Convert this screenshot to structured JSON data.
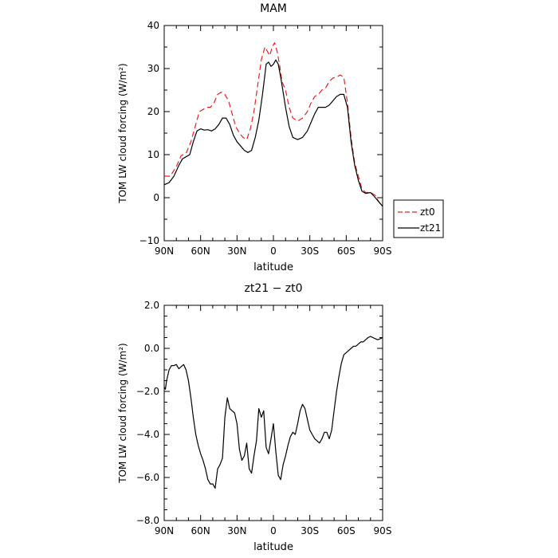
{
  "chart_data": [
    {
      "type": "line",
      "title": "MAM",
      "xlabel": "latitude",
      "ylabel": "TOM LW cloud forcing (W/m²)",
      "xlim": [
        90,
        -90
      ],
      "ylim": [
        -10,
        40
      ],
      "xticks": [
        {
          "value": 90,
          "label": "90N"
        },
        {
          "value": 60,
          "label": "60N"
        },
        {
          "value": 30,
          "label": "30N"
        },
        {
          "value": 0,
          "label": "0"
        },
        {
          "value": -30,
          "label": "30S"
        },
        {
          "value": -60,
          "label": "60S"
        },
        {
          "value": -90,
          "label": "90S"
        }
      ],
      "yticks": [
        {
          "value": 40,
          "label": "40"
        },
        {
          "value": 30,
          "label": "30"
        },
        {
          "value": 20,
          "label": "20"
        },
        {
          "value": 10,
          "label": "10"
        },
        {
          "value": 0,
          "label": "0"
        },
        {
          "value": -10,
          "label": "−10"
        }
      ],
      "legend": {
        "placement": "outside-right"
      },
      "series": [
        {
          "name": "zt0",
          "color": "#e8201f",
          "dash": "dashed",
          "x": [
            90,
            85,
            80,
            76,
            72,
            68,
            64,
            61,
            58,
            55,
            52,
            49,
            46,
            43,
            40,
            37,
            34,
            31,
            28,
            25,
            22,
            19,
            16,
            13,
            10,
            7,
            5,
            3,
            1,
            -1,
            -3,
            -5,
            -7,
            -10,
            -13,
            -16,
            -20,
            -24,
            -28,
            -31,
            -34,
            -37,
            -40,
            -43,
            -46,
            -49,
            -52,
            -55,
            -58,
            -61,
            -64,
            -67,
            -70,
            -73,
            -76,
            -80,
            -84,
            -87,
            -90
          ],
          "y": [
            5.0,
            5.0,
            7.2,
            9.8,
            10.3,
            13.0,
            17.0,
            20.0,
            20.5,
            21.0,
            21.0,
            22.0,
            24.0,
            24.5,
            24.0,
            22.5,
            19.5,
            16.5,
            15.0,
            14.0,
            13.5,
            16.0,
            20.0,
            26.0,
            32.0,
            35.0,
            34.0,
            33.0,
            35.0,
            36.0,
            34.0,
            31.0,
            27.0,
            25.0,
            21.0,
            18.5,
            17.8,
            18.5,
            20.0,
            22.0,
            23.5,
            24.0,
            25.0,
            25.5,
            27.0,
            27.8,
            28.0,
            28.5,
            28.0,
            22.0,
            14.0,
            8.0,
            5.0,
            2.0,
            1.2,
            1.2,
            0.5,
            -1.0,
            -2.0
          ]
        },
        {
          "name": "zt21",
          "color": "#000000",
          "dash": "solid",
          "x": [
            90,
            86,
            82,
            78,
            75,
            72,
            69,
            66,
            63,
            60,
            57,
            54,
            51,
            48,
            45,
            42,
            39,
            36,
            33,
            30,
            27,
            24,
            21,
            18,
            15,
            12,
            9,
            6,
            4,
            2,
            0,
            -2,
            -4,
            -6,
            -8,
            -10,
            -13,
            -16,
            -20,
            -24,
            -28,
            -31,
            -34,
            -37,
            -40,
            -43,
            -46,
            -49,
            -52,
            -55,
            -58,
            -61,
            -64,
            -67,
            -70,
            -73,
            -76,
            -80,
            -84,
            -87,
            -90
          ],
          "y": [
            3.0,
            3.5,
            5.0,
            7.5,
            9.0,
            9.5,
            10.0,
            13.0,
            15.5,
            16.0,
            15.7,
            15.8,
            15.5,
            16.0,
            17.0,
            18.5,
            18.5,
            17.0,
            14.5,
            13.0,
            12.0,
            11.0,
            10.5,
            11.0,
            14.0,
            18.0,
            24.0,
            31.0,
            31.5,
            30.5,
            31.0,
            32.0,
            31.0,
            28.0,
            24.5,
            21.0,
            16.5,
            14.0,
            13.5,
            14.0,
            15.5,
            17.5,
            19.5,
            21.0,
            21.0,
            21.0,
            21.5,
            22.5,
            23.5,
            24.0,
            24.0,
            21.0,
            13.0,
            7.5,
            4.0,
            1.5,
            1.0,
            1.2,
            0.0,
            -1.0,
            -2.0
          ]
        }
      ]
    },
    {
      "type": "line",
      "title": "zt21 − zt0",
      "xlabel": "latitude",
      "ylabel": "TOM LW cloud forcing (W/m²)",
      "xlim": [
        90,
        -90
      ],
      "ylim": [
        -8,
        2
      ],
      "xticks": [
        {
          "value": 90,
          "label": "90N"
        },
        {
          "value": 60,
          "label": "60N"
        },
        {
          "value": 30,
          "label": "30N"
        },
        {
          "value": 0,
          "label": "0"
        },
        {
          "value": -30,
          "label": "30S"
        },
        {
          "value": -60,
          "label": "60S"
        },
        {
          "value": -90,
          "label": "90S"
        }
      ],
      "yticks": [
        {
          "value": 2,
          "label": "2.0"
        },
        {
          "value": 0,
          "label": "0.0"
        },
        {
          "value": -2,
          "label": "−2.0"
        },
        {
          "value": -4,
          "label": "−4.0"
        },
        {
          "value": -6,
          "label": "−6.0"
        },
        {
          "value": -8,
          "label": "−8.0"
        }
      ],
      "series": [
        {
          "color": "#000000",
          "dash": "solid",
          "x": [
            90,
            89,
            88,
            86,
            84,
            82,
            80,
            78,
            76,
            74,
            72,
            70,
            68,
            66,
            64,
            62,
            60,
            58,
            56,
            54,
            52,
            50,
            48,
            46,
            44,
            42,
            40,
            38,
            36,
            34,
            32,
            30,
            28,
            26,
            24,
            22,
            20,
            18,
            16,
            14,
            12,
            10,
            8,
            6,
            4,
            2,
            0,
            -2,
            -4,
            -6,
            -8,
            -10,
            -12,
            -14,
            -16,
            -18,
            -20,
            -22,
            -24,
            -26,
            -28,
            -30,
            -32,
            -34,
            -36,
            -38,
            -40,
            -42,
            -44,
            -46,
            -48,
            -50,
            -52,
            -54,
            -56,
            -58,
            -60,
            -62,
            -64,
            -66,
            -68,
            -70,
            -72,
            -74,
            -76,
            -78,
            -80,
            -82,
            -84,
            -86,
            -88,
            -90
          ],
          "y": [
            -1.8,
            -1.9,
            -1.5,
            -1.0,
            -0.8,
            -0.8,
            -0.75,
            -0.95,
            -0.85,
            -0.75,
            -1.0,
            -1.5,
            -2.3,
            -3.2,
            -4.0,
            -4.5,
            -4.9,
            -5.2,
            -5.6,
            -6.1,
            -6.3,
            -6.3,
            -6.5,
            -5.6,
            -5.4,
            -5.1,
            -3.2,
            -2.3,
            -2.8,
            -2.9,
            -3.0,
            -3.5,
            -4.7,
            -5.2,
            -5.0,
            -4.4,
            -5.6,
            -5.8,
            -5.0,
            -4.3,
            -2.8,
            -3.2,
            -2.9,
            -4.6,
            -4.9,
            -4.2,
            -3.5,
            -4.8,
            -5.9,
            -6.1,
            -5.4,
            -5.0,
            -4.5,
            -4.1,
            -3.9,
            -4.0,
            -3.5,
            -2.9,
            -2.6,
            -2.8,
            -3.3,
            -3.8,
            -4.0,
            -4.2,
            -4.3,
            -4.4,
            -4.2,
            -3.9,
            -3.9,
            -4.2,
            -3.8,
            -2.9,
            -2.0,
            -1.3,
            -0.7,
            -0.3,
            -0.2,
            -0.1,
            0.0,
            0.1,
            0.1,
            0.2,
            0.3,
            0.3,
            0.4,
            0.5,
            0.55,
            0.5,
            0.45,
            0.4,
            0.45,
            0.5
          ]
        }
      ]
    }
  ]
}
